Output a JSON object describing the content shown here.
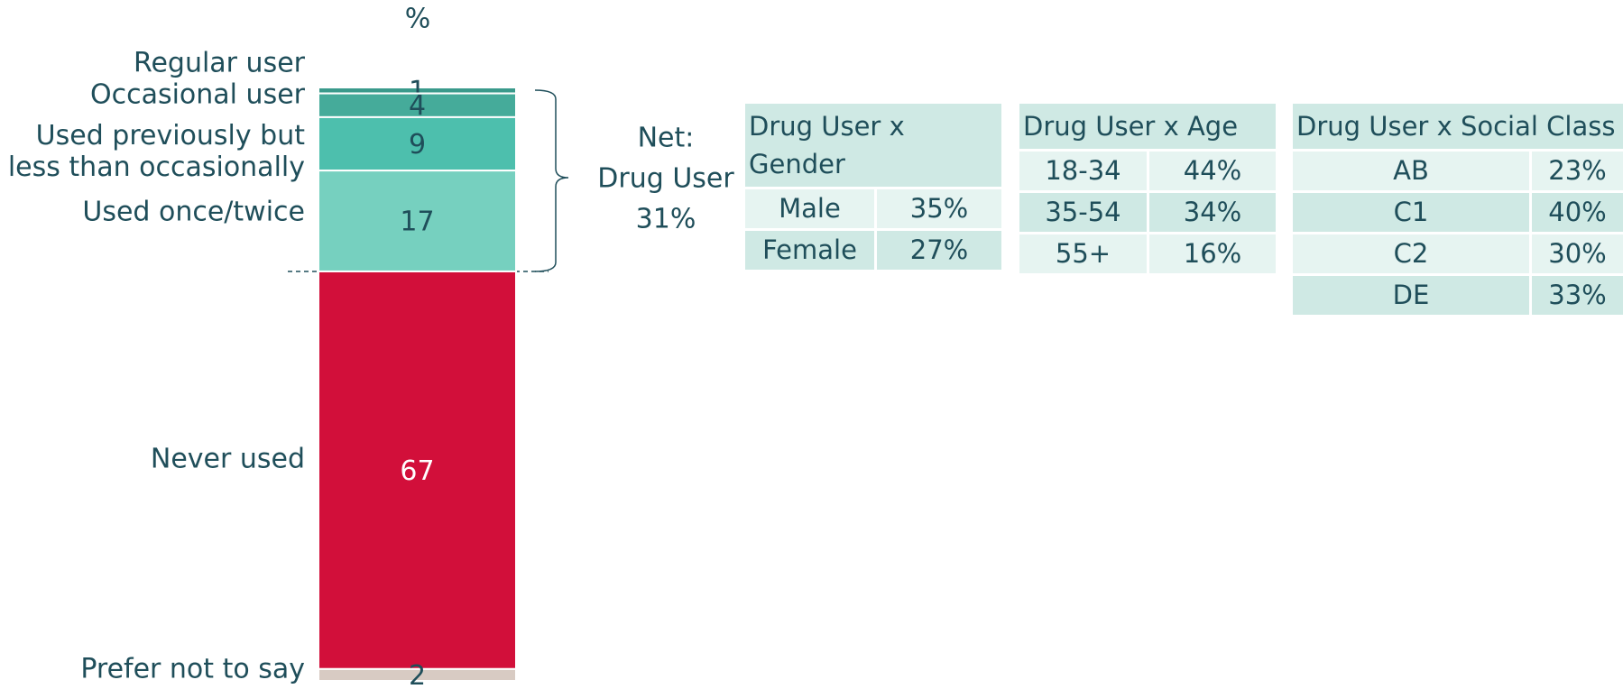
{
  "chart_data": {
    "type": "stacked-bar",
    "axis_label": "%",
    "categories": [
      "Regular user",
      "Occasional user",
      "Used previously but less than occasionally",
      "Used once/twice",
      "Never used",
      "Prefer not to say"
    ],
    "values": [
      1,
      4,
      9,
      17,
      67,
      2
    ],
    "colors": [
      "#3a9a8b",
      "#45ab9a",
      "#4dbfad",
      "#76d0bf",
      "#d20f3a",
      "#d8cbc3"
    ],
    "label_colors": [
      "#1f4e5a",
      "#1f4e5a",
      "#1f4e5a",
      "#1f4e5a",
      "#ffffff",
      "#1f4e5a"
    ],
    "net": {
      "lines": [
        "Net:",
        "Drug User",
        "31%"
      ]
    }
  },
  "tables": [
    {
      "title": "Drug User x Gender",
      "rows": [
        [
          "Male",
          "35%"
        ],
        [
          "Female",
          "27%"
        ]
      ]
    },
    {
      "title": "Drug User x Age",
      "rows": [
        [
          "18-34",
          "44%"
        ],
        [
          "35-54",
          "34%"
        ],
        [
          "55+",
          "16%"
        ]
      ]
    },
    {
      "title": "Drug User x Social Class",
      "rows": [
        [
          "AB",
          "23%"
        ],
        [
          "C1",
          "40%"
        ],
        [
          "C2",
          "30%"
        ],
        [
          "DE",
          "33%"
        ]
      ]
    }
  ]
}
